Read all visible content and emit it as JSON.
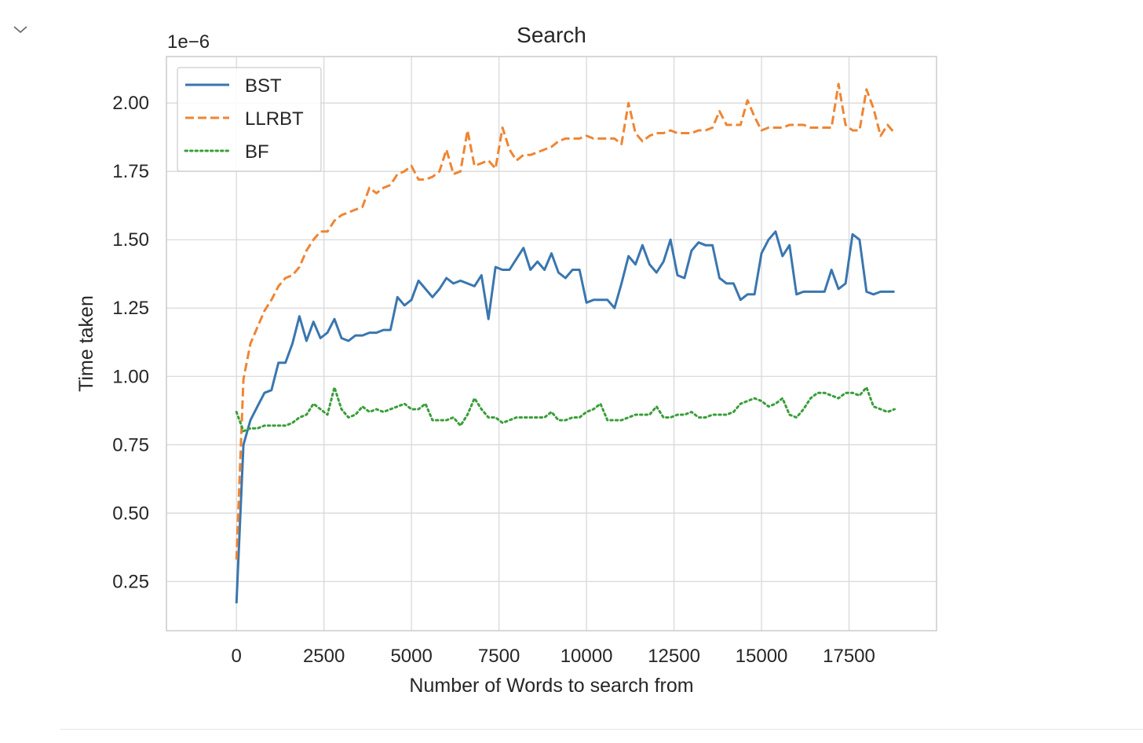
{
  "cell": {
    "collapse_icon": "chevron-down-icon"
  },
  "chart_data": {
    "type": "line",
    "title": "Search",
    "xlabel": "Number of Words to search from",
    "ylabel": "Time taken",
    "y_offset_text": "1e−6",
    "xlim": [
      -2000,
      20000
    ],
    "ylim": [
      0.07,
      2.17
    ],
    "xticks": [
      0,
      2500,
      5000,
      7500,
      10000,
      12500,
      15000,
      17500
    ],
    "xtick_labels": [
      "0",
      "2500",
      "5000",
      "7500",
      "10000",
      "12500",
      "15000",
      "17500"
    ],
    "yticks": [
      0.25,
      0.5,
      0.75,
      1.0,
      1.25,
      1.5,
      1.75,
      2.0
    ],
    "ytick_labels": [
      "0.25",
      "0.50",
      "0.75",
      "1.00",
      "1.25",
      "1.50",
      "1.75",
      "2.00"
    ],
    "grid": true,
    "legend": "upper-left",
    "x": [
      0,
      200,
      400,
      600,
      800,
      1000,
      1200,
      1400,
      1600,
      1800,
      2000,
      2200,
      2400,
      2600,
      2800,
      3000,
      3200,
      3400,
      3600,
      3800,
      4000,
      4200,
      4400,
      4600,
      4800,
      5000,
      5200,
      5400,
      5600,
      5800,
      6000,
      6200,
      6400,
      6600,
      6800,
      7000,
      7200,
      7400,
      7600,
      7800,
      8000,
      8200,
      8400,
      8600,
      8800,
      9000,
      9200,
      9400,
      9600,
      9800,
      10000,
      10200,
      10400,
      10600,
      10800,
      11000,
      11200,
      11400,
      11600,
      11800,
      12000,
      12200,
      12400,
      12600,
      12800,
      13000,
      13200,
      13400,
      13600,
      13800,
      14000,
      14200,
      14400,
      14600,
      14800,
      15000,
      15200,
      15400,
      15600,
      15800,
      16000,
      16200,
      16400,
      16600,
      16800,
      17000,
      17200,
      17400,
      17600,
      17800,
      18000,
      18200,
      18400,
      18600,
      18800
    ],
    "series": [
      {
        "name": "BST",
        "color": "#3a76af",
        "dash": "solid",
        "values": [
          0.17,
          0.75,
          0.84,
          0.89,
          0.94,
          0.95,
          1.05,
          1.05,
          1.12,
          1.22,
          1.13,
          1.2,
          1.14,
          1.16,
          1.21,
          1.14,
          1.13,
          1.15,
          1.15,
          1.16,
          1.16,
          1.17,
          1.17,
          1.29,
          1.26,
          1.28,
          1.35,
          1.32,
          1.29,
          1.32,
          1.36,
          1.34,
          1.35,
          1.34,
          1.33,
          1.37,
          1.21,
          1.4,
          1.39,
          1.39,
          1.43,
          1.47,
          1.39,
          1.42,
          1.39,
          1.45,
          1.38,
          1.36,
          1.39,
          1.39,
          1.27,
          1.28,
          1.28,
          1.28,
          1.25,
          1.34,
          1.44,
          1.41,
          1.48,
          1.41,
          1.38,
          1.42,
          1.5,
          1.37,
          1.36,
          1.46,
          1.49,
          1.48,
          1.48,
          1.36,
          1.34,
          1.34,
          1.28,
          1.3,
          1.3,
          1.45,
          1.5,
          1.53,
          1.44,
          1.48,
          1.3,
          1.31,
          1.31,
          1.31,
          1.31,
          1.39,
          1.32,
          1.34,
          1.52,
          1.5,
          1.31,
          1.3,
          1.31,
          1.31,
          1.31
        ]
      },
      {
        "name": "LLRBT",
        "color": "#ef8533",
        "dash": "dashed",
        "values": [
          0.33,
          0.99,
          1.12,
          1.18,
          1.24,
          1.28,
          1.33,
          1.36,
          1.37,
          1.4,
          1.46,
          1.5,
          1.53,
          1.53,
          1.57,
          1.59,
          1.6,
          1.61,
          1.62,
          1.69,
          1.67,
          1.69,
          1.7,
          1.74,
          1.75,
          1.77,
          1.72,
          1.72,
          1.73,
          1.75,
          1.83,
          1.74,
          1.75,
          1.9,
          1.77,
          1.78,
          1.79,
          1.76,
          1.91,
          1.83,
          1.79,
          1.81,
          1.81,
          1.82,
          1.83,
          1.84,
          1.86,
          1.87,
          1.87,
          1.87,
          1.88,
          1.87,
          1.87,
          1.87,
          1.87,
          1.85,
          2.0,
          1.89,
          1.86,
          1.88,
          1.89,
          1.89,
          1.9,
          1.89,
          1.89,
          1.89,
          1.9,
          1.9,
          1.91,
          1.97,
          1.92,
          1.92,
          1.92,
          2.01,
          1.95,
          1.9,
          1.91,
          1.91,
          1.91,
          1.92,
          1.92,
          1.92,
          1.91,
          1.91,
          1.91,
          1.91,
          2.07,
          1.92,
          1.9,
          1.9,
          2.05,
          1.98,
          1.88,
          1.92,
          1.89
        ]
      },
      {
        "name": "BF",
        "color": "#3a9e3a",
        "dash": "dotted",
        "values": [
          0.87,
          0.8,
          0.81,
          0.81,
          0.82,
          0.82,
          0.82,
          0.82,
          0.83,
          0.85,
          0.86,
          0.9,
          0.88,
          0.86,
          0.96,
          0.88,
          0.85,
          0.86,
          0.89,
          0.87,
          0.88,
          0.87,
          0.88,
          0.89,
          0.9,
          0.88,
          0.88,
          0.9,
          0.84,
          0.84,
          0.84,
          0.85,
          0.82,
          0.86,
          0.92,
          0.88,
          0.85,
          0.85,
          0.83,
          0.84,
          0.85,
          0.85,
          0.85,
          0.85,
          0.85,
          0.87,
          0.84,
          0.84,
          0.85,
          0.85,
          0.87,
          0.88,
          0.9,
          0.84,
          0.84,
          0.84,
          0.85,
          0.86,
          0.86,
          0.86,
          0.89,
          0.85,
          0.85,
          0.86,
          0.86,
          0.87,
          0.85,
          0.85,
          0.86,
          0.86,
          0.86,
          0.87,
          0.9,
          0.91,
          0.92,
          0.91,
          0.89,
          0.9,
          0.92,
          0.86,
          0.85,
          0.88,
          0.92,
          0.94,
          0.94,
          0.93,
          0.92,
          0.94,
          0.94,
          0.93,
          0.96,
          0.89,
          0.88,
          0.87,
          0.88
        ]
      }
    ]
  }
}
